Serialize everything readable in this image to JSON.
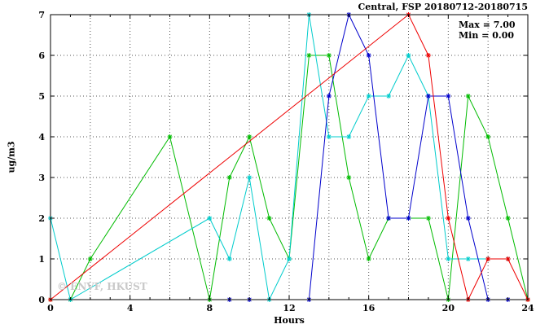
{
  "chart_data": {
    "type": "line",
    "title": "Central, FSP 20180712-20180715",
    "xlabel": "Hours",
    "ylabel": "ug/m3",
    "xlim": [
      0,
      24
    ],
    "ylim": [
      0,
      7
    ],
    "xticks": [
      0,
      4,
      8,
      12,
      16,
      20,
      24
    ],
    "yticks": [
      0,
      1,
      2,
      3,
      4,
      5,
      6,
      7
    ],
    "grid": {
      "x_interval": 2,
      "y_interval": 1,
      "style": "dotted"
    },
    "annotations": {
      "max": "Max = 7.00",
      "min": "Min = 0.00"
    },
    "watermark": "© ENVF, HKUST",
    "marker": "asterisk",
    "series": [
      {
        "name": "green",
        "color": "#00bb00",
        "points": [
          [
            0,
            0
          ],
          [
            1,
            0
          ],
          [
            2,
            1
          ],
          [
            6,
            4
          ],
          [
            8,
            0
          ],
          [
            9,
            3
          ],
          [
            10,
            4
          ],
          [
            11,
            2
          ],
          [
            12,
            1
          ],
          [
            13,
            6
          ],
          [
            14,
            6
          ],
          [
            15,
            3
          ],
          [
            16,
            1
          ],
          [
            17,
            2
          ],
          [
            18,
            2
          ],
          [
            19,
            2
          ],
          [
            20,
            0
          ],
          [
            21,
            5
          ],
          [
            22,
            4
          ],
          [
            23,
            2
          ],
          [
            24,
            0
          ]
        ]
      },
      {
        "name": "cyan",
        "color": "#00cccc",
        "points": [
          [
            0,
            2
          ],
          [
            1,
            0
          ],
          [
            8,
            2
          ],
          [
            9,
            1
          ],
          [
            10,
            3
          ],
          [
            11,
            0
          ],
          [
            12,
            1
          ],
          [
            13,
            7
          ],
          [
            14,
            4
          ],
          [
            15,
            4
          ],
          [
            16,
            5
          ],
          [
            17,
            5
          ],
          [
            18,
            6
          ],
          [
            19,
            5
          ],
          [
            20,
            1
          ],
          [
            21,
            1
          ],
          [
            22,
            1
          ],
          [
            23,
            1
          ]
        ]
      },
      {
        "name": "blue",
        "color": "#0000cc",
        "points": [
          [
            9,
            0
          ],
          [
            10,
            0
          ],
          [
            13,
            0
          ],
          [
            14,
            5
          ],
          [
            15,
            7
          ],
          [
            16,
            6
          ],
          [
            17,
            2
          ],
          [
            18,
            2
          ],
          [
            19,
            5
          ],
          [
            20,
            5
          ],
          [
            21,
            2
          ],
          [
            22,
            0
          ],
          [
            23,
            0
          ]
        ]
      },
      {
        "name": "red",
        "color": "#ee0000",
        "points": [
          [
            0,
            0
          ],
          [
            18,
            7
          ],
          [
            19,
            6
          ],
          [
            20,
            2
          ],
          [
            21,
            0
          ],
          [
            22,
            1
          ],
          [
            23,
            1
          ],
          [
            24,
            0
          ]
        ]
      }
    ]
  }
}
